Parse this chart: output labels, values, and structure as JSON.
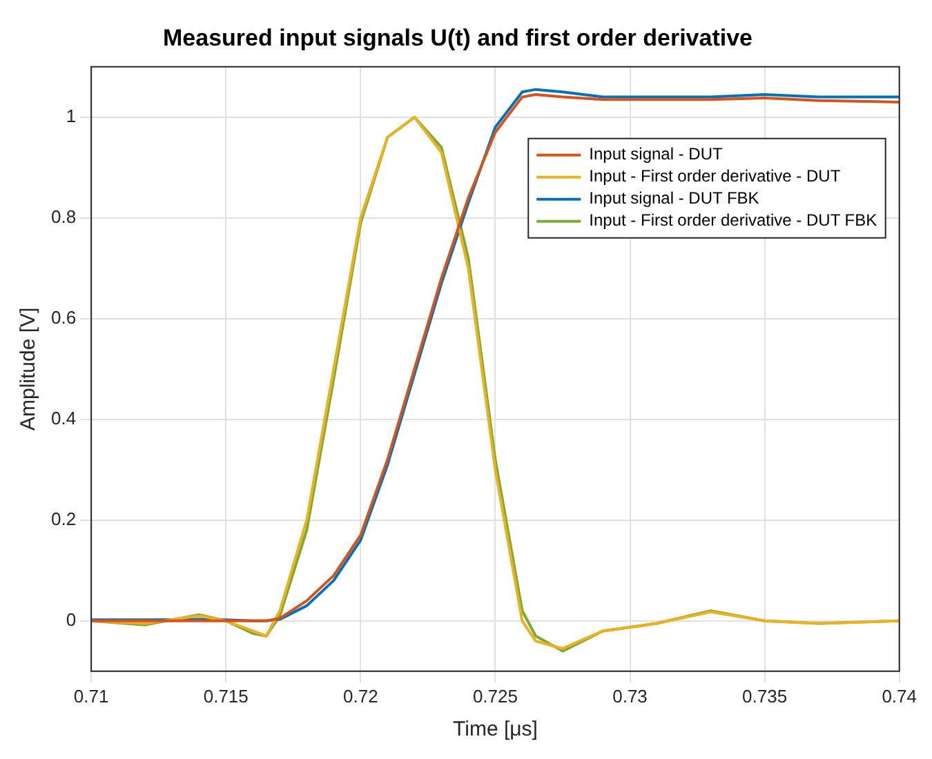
{
  "chart_data": {
    "type": "line",
    "title": "Measured input signals U(t) and first order derivative",
    "xlabel": "Time [μs]",
    "ylabel": "Amplitude [V]",
    "x": [
      0.71,
      0.712,
      0.714,
      0.715,
      0.716,
      0.7165,
      0.717,
      0.718,
      0.719,
      0.72,
      0.721,
      0.722,
      0.723,
      0.724,
      0.725,
      0.726,
      0.7265,
      0.7275,
      0.729,
      0.731,
      0.733,
      0.735,
      0.737,
      0.74
    ],
    "series": [
      {
        "name": "Input signal - DUT",
        "color": "#d95319",
        "values": [
          0,
          0,
          0,
          0,
          0,
          0,
          0.005,
          0.04,
          0.09,
          0.17,
          0.32,
          0.5,
          0.68,
          0.84,
          0.97,
          1.04,
          1.045,
          1.04,
          1.035,
          1.035,
          1.035,
          1.038,
          1.033,
          1.03
        ]
      },
      {
        "name": "Input - First order derivative - DUT",
        "color": "#edb120",
        "values": [
          0,
          -0.005,
          0.01,
          0,
          -0.02,
          -0.03,
          0.02,
          0.2,
          0.5,
          0.8,
          0.96,
          1.0,
          0.93,
          0.7,
          0.3,
          0.0,
          -0.04,
          -0.055,
          -0.02,
          -0.005,
          0.018,
          0,
          -0.005,
          0
        ]
      },
      {
        "name": "Input signal - DUT FBK",
        "color": "#0072bd",
        "values": [
          0.002,
          0.002,
          0.003,
          0.002,
          0,
          0,
          0.003,
          0.03,
          0.08,
          0.16,
          0.31,
          0.49,
          0.67,
          0.83,
          0.98,
          1.05,
          1.055,
          1.05,
          1.04,
          1.04,
          1.04,
          1.045,
          1.04,
          1.04
        ]
      },
      {
        "name": "Input - First order derivative - DUT FBK",
        "color": "#77ac30",
        "values": [
          0,
          -0.008,
          0.012,
          0,
          -0.025,
          -0.03,
          0.01,
          0.18,
          0.48,
          0.79,
          0.96,
          1.0,
          0.94,
          0.72,
          0.32,
          0.02,
          -0.03,
          -0.06,
          -0.02,
          -0.005,
          0.02,
          0,
          -0.005,
          0
        ]
      }
    ],
    "xlim": [
      0.71,
      0.74
    ],
    "xticks": [
      0.71,
      0.715,
      0.72,
      0.725,
      0.73,
      0.735,
      0.74
    ],
    "ylim": [
      -0.1,
      1.1
    ],
    "yticks": [
      0,
      0.2,
      0.4,
      0.6,
      0.8,
      1
    ],
    "grid": true,
    "legend": "top right",
    "marker": "none",
    "line_style": "solid"
  }
}
